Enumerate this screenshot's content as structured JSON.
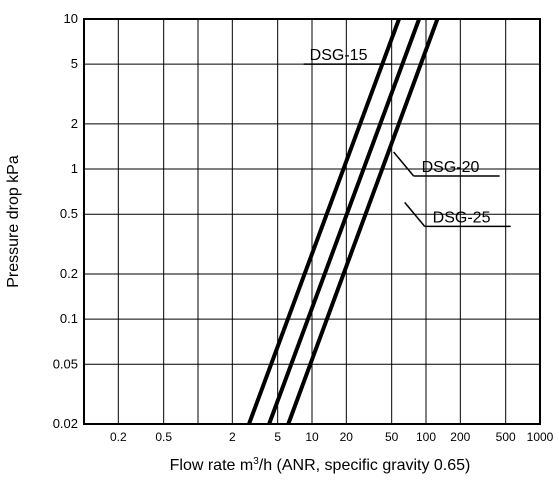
{
  "chart_data": {
    "type": "line",
    "xscale": "log",
    "yscale": "log",
    "xlim": [
      0.1,
      1000
    ],
    "ylim": [
      0.02,
      10
    ],
    "grid": true,
    "xlabel": {
      "pre": "Flow rate m",
      "sup": "3",
      "post": "/h (ANR, specific gravity 0.65)"
    },
    "ylabel": "Pressure drop kPa",
    "xticks": [
      {
        "value": 0.2,
        "label": "0.2"
      },
      {
        "value": 0.5,
        "label": "0.5"
      },
      {
        "value": 2,
        "label": "2"
      },
      {
        "value": 5,
        "label": "5"
      },
      {
        "value": 10,
        "label": "10"
      },
      {
        "value": 20,
        "label": "20"
      },
      {
        "value": 50,
        "label": "50"
      },
      {
        "value": 100,
        "label": "100"
      },
      {
        "value": 200,
        "label": "200"
      },
      {
        "value": 500,
        "label": "500"
      },
      {
        "value": 1000,
        "label": "1000"
      }
    ],
    "xgrid": [
      0.2,
      0.5,
      1,
      2,
      5,
      10,
      20,
      50,
      100,
      200,
      500
    ],
    "yticks": [
      {
        "value": 0.02,
        "label": "0.02"
      },
      {
        "value": 0.05,
        "label": "0.05"
      },
      {
        "value": 0.1,
        "label": "0.1"
      },
      {
        "value": 0.2,
        "label": "0.2"
      },
      {
        "value": 0.5,
        "label": "0.5"
      },
      {
        "value": 1,
        "label": "1"
      },
      {
        "value": 2,
        "label": "2"
      },
      {
        "value": 5,
        "label": "5"
      },
      {
        "value": 10,
        "label": "10"
      }
    ],
    "series": [
      {
        "name": "DSG-15",
        "x": [
          2.8,
          58
        ],
        "y": [
          0.02,
          10
        ]
      },
      {
        "name": "DSG-20",
        "x": [
          4.2,
          87
        ],
        "y": [
          0.02,
          10
        ]
      },
      {
        "name": "DSG-25",
        "x": [
          6.2,
          126
        ],
        "y": [
          0.02,
          10
        ]
      }
    ],
    "annotations": [
      {
        "series": "DSG-15",
        "text": "DSG-15",
        "point": [
          50,
          5
        ]
      },
      {
        "series": "DSG-20",
        "text": "DSG-20",
        "point": [
          52,
          1.3
        ]
      },
      {
        "series": "DSG-25",
        "text": "DSG-25",
        "point": [
          65,
          0.6
        ]
      }
    ]
  }
}
